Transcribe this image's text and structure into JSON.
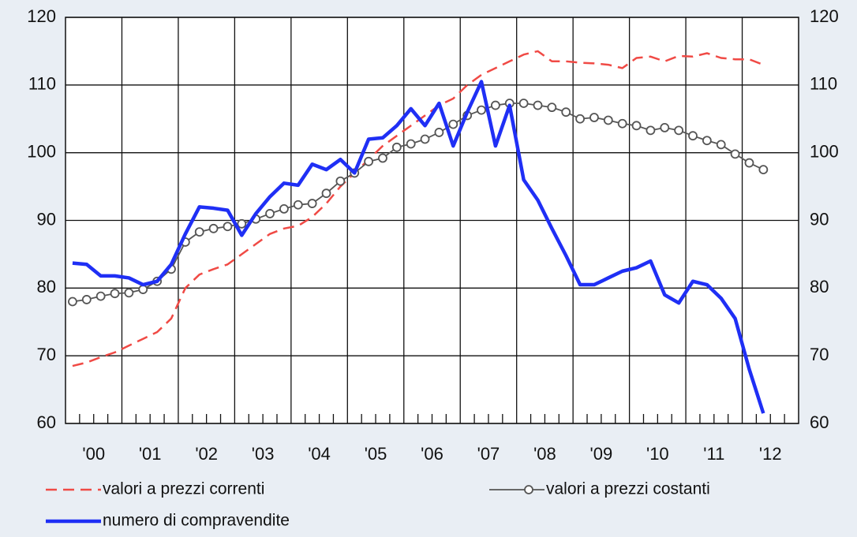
{
  "chart_data": {
    "type": "line",
    "categories": [
      null,
      "'00",
      null,
      null,
      null,
      "'01",
      null,
      null,
      null,
      "'02",
      null,
      null,
      null,
      "'03",
      null,
      null,
      null,
      "'04",
      null,
      null,
      null,
      "'05",
      null,
      null,
      null,
      "'06",
      null,
      null,
      null,
      "'07",
      null,
      null,
      null,
      "'08",
      null,
      null,
      null,
      "'09",
      null,
      null,
      null,
      "'10",
      null,
      null,
      null,
      "'11",
      null,
      null,
      null,
      "'12"
    ],
    "series": [
      {
        "name": "valori a prezzi correnti",
        "color": "#f04a45",
        "style": "dashed",
        "values": [
          68.5,
          69,
          69.8,
          70.5,
          71.5,
          72.5,
          73.5,
          75.5,
          80,
          82,
          82.8,
          83.5,
          85,
          86.5,
          88,
          88.8,
          89.2,
          90.5,
          92.5,
          95,
          97,
          99,
          101,
          102.5,
          104,
          105.5,
          107,
          108,
          110,
          111.5,
          112.5,
          113.5,
          114.5,
          115,
          113.5,
          113.5,
          113.3,
          113.2,
          113,
          112.5,
          114,
          114.2,
          113.5,
          114.3,
          114.2,
          114.7,
          114,
          113.8,
          113.8,
          113
        ]
      },
      {
        "name": "valori a prezzi costanti",
        "color": "#555555",
        "style": "markers",
        "values": [
          78,
          78.3,
          78.8,
          79.2,
          79.3,
          79.8,
          81,
          82.8,
          86.8,
          88.3,
          88.8,
          89.1,
          89.5,
          90.2,
          91,
          91.7,
          92.3,
          92.5,
          94,
          95.8,
          97,
          98.7,
          99.2,
          100.8,
          101.3,
          102,
          103,
          104.2,
          105.5,
          106.3,
          107,
          107.3,
          107.3,
          107,
          106.7,
          106,
          105,
          105.2,
          104.8,
          104.3,
          104,
          103.3,
          103.7,
          103.3,
          102.5,
          101.8,
          101.2,
          99.8,
          98.5,
          97.5
        ]
      },
      {
        "name": "numero di compravendite",
        "color": "#1f2ff5",
        "style": "thick",
        "values": [
          83.7,
          83.5,
          81.8,
          81.8,
          81.5,
          80.5,
          81,
          83.5,
          88,
          92,
          91.8,
          91.5,
          87.8,
          91,
          93.5,
          95.5,
          95.2,
          98.3,
          97.5,
          99,
          97,
          102,
          102.2,
          104,
          106.5,
          104,
          107.3,
          101,
          106,
          110.5,
          101,
          107,
          96,
          93,
          88.8,
          84.8,
          80.5,
          80.5,
          81.5,
          82.5,
          83,
          84,
          79,
          77.8,
          81,
          80.5,
          78.5,
          75.5,
          68,
          61.5
        ]
      }
    ],
    "ylim": [
      60,
      120
    ],
    "yticks": [
      60,
      70,
      80,
      90,
      100,
      110,
      120
    ],
    "y2lim": [
      60,
      120
    ],
    "y2ticks": [
      60,
      70,
      80,
      90,
      100,
      110,
      120
    ],
    "grid": true
  }
}
